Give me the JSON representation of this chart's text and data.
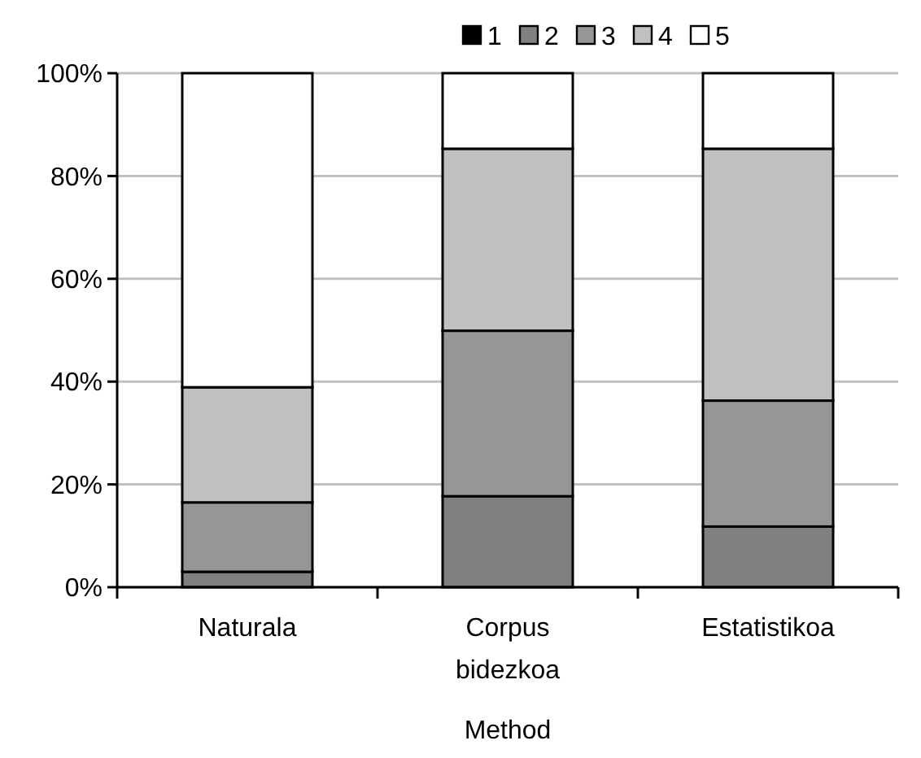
{
  "chart_data": {
    "type": "bar",
    "stacked": true,
    "xlabel": "Method",
    "categories": [
      "Naturala",
      "Corpus bidezkoa",
      "Estatistikoa"
    ],
    "series": [
      {
        "name": "1",
        "color": "#000000",
        "values": [
          0,
          0,
          0
        ]
      },
      {
        "name": "2",
        "color": "#808080",
        "values": [
          3.0,
          17.7,
          11.8
        ]
      },
      {
        "name": "3",
        "color": "#969696",
        "values": [
          13.5,
          32.2,
          24.5
        ]
      },
      {
        "name": "4",
        "color": "#c0c0c0",
        "values": [
          22.4,
          35.4,
          49.0
        ]
      },
      {
        "name": "5",
        "color": "#ffffff",
        "values": [
          61.1,
          14.7,
          14.7
        ]
      }
    ],
    "ylim": [
      0,
      100
    ],
    "yticks": [
      {
        "value": 0,
        "label": "0%"
      },
      {
        "value": 20,
        "label": "20%"
      },
      {
        "value": 40,
        "label": "40%"
      },
      {
        "value": 60,
        "label": "60%"
      },
      {
        "value": 80,
        "label": "80%"
      },
      {
        "value": 100,
        "label": "100%"
      }
    ],
    "grid": "y",
    "legend": "top"
  }
}
